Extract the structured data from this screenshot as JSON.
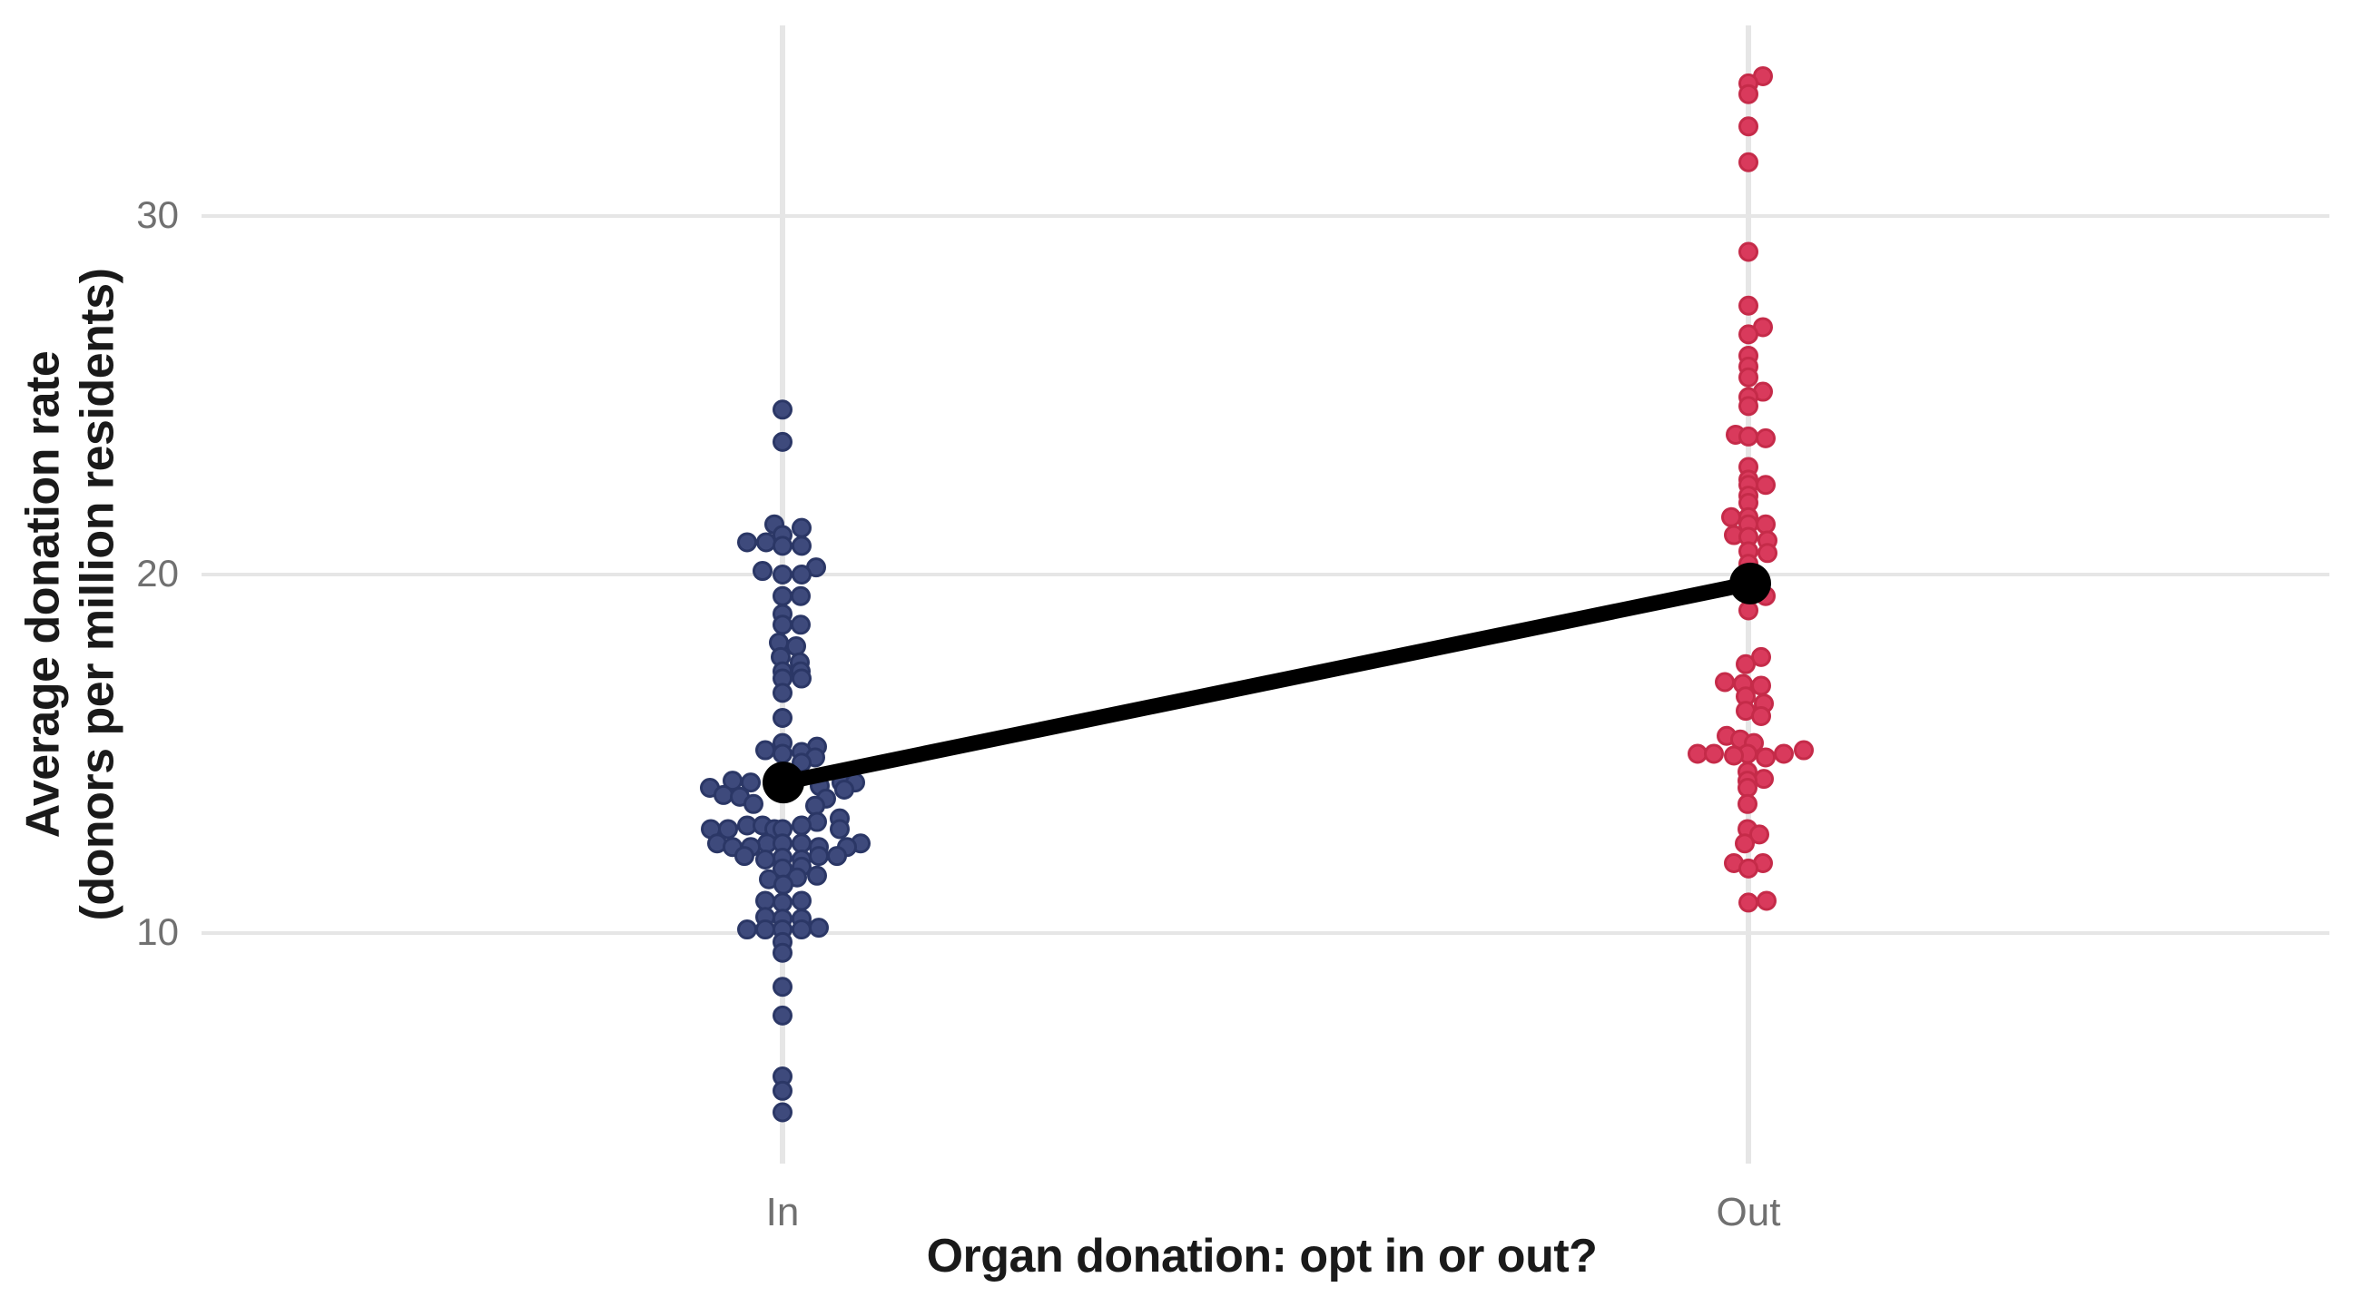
{
  "chart_data": {
    "type": "scatter",
    "subtype": "jittered strip plot with group means connected by a line",
    "title": "",
    "xlabel": "Organ donation: opt in or out?",
    "ylabel_lines": [
      "Average donation rate",
      "(donors per million residents)"
    ],
    "categories": [
      "In",
      "Out"
    ],
    "y_ticks": [
      10,
      20,
      30
    ],
    "y_range_approx": [
      3.6,
      35.3
    ],
    "grid": "major gridlines only, light gray on white",
    "legend": "none",
    "colors": {
      "opt_in_fill": "#3E4A7C",
      "opt_in_stroke": "#2B3766",
      "opt_out_fill": "#D93A5C",
      "opt_out_stroke": "#C52B49",
      "mean": "#000000",
      "gridline": "#E6E6E6",
      "tick_label": "#707070",
      "axis_title": "#1A1A1A",
      "background": "#FFFFFF"
    },
    "means": [
      {
        "category": "In",
        "value": 14.2
      },
      {
        "category": "Out",
        "value": 19.75
      }
    ],
    "series": [
      {
        "name": "Opt in",
        "category": "In",
        "points_format": "[donation_rate, x_jitter_px]",
        "points": [
          [
            24.6,
            0
          ],
          [
            23.7,
            0
          ],
          [
            21.4,
            -9
          ],
          [
            21.3,
            21
          ],
          [
            21.1,
            0
          ],
          [
            20.9,
            -39
          ],
          [
            20.9,
            -18
          ],
          [
            20.8,
            0
          ],
          [
            20.8,
            21
          ],
          [
            20.2,
            37
          ],
          [
            20.1,
            -22
          ],
          [
            20.0,
            0
          ],
          [
            20.0,
            21
          ],
          [
            19.4,
            0
          ],
          [
            19.4,
            20
          ],
          [
            18.9,
            0
          ],
          [
            18.6,
            0
          ],
          [
            18.6,
            20
          ],
          [
            18.1,
            -4
          ],
          [
            18.0,
            15
          ],
          [
            17.7,
            -2
          ],
          [
            17.55,
            19
          ],
          [
            17.3,
            0
          ],
          [
            17.3,
            20
          ],
          [
            17.1,
            0
          ],
          [
            17.1,
            21
          ],
          [
            16.7,
            0
          ],
          [
            16.0,
            0
          ],
          [
            15.3,
            0
          ],
          [
            15.2,
            38
          ],
          [
            15.1,
            -19
          ],
          [
            15.05,
            21
          ],
          [
            15.0,
            0
          ],
          [
            14.9,
            36
          ],
          [
            14.75,
            21
          ],
          [
            14.25,
            -55
          ],
          [
            14.2,
            -35
          ],
          [
            14.2,
            65
          ],
          [
            14.2,
            80
          ],
          [
            14.1,
            41
          ],
          [
            14.05,
            -80
          ],
          [
            14.0,
            68
          ],
          [
            13.85,
            -65
          ],
          [
            13.8,
            -47
          ],
          [
            13.75,
            48
          ],
          [
            13.6,
            -32
          ],
          [
            13.55,
            36
          ],
          [
            13.2,
            63
          ],
          [
            13.1,
            38
          ],
          [
            13.0,
            -39
          ],
          [
            13.0,
            -22
          ],
          [
            13.0,
            21
          ],
          [
            12.9,
            -79
          ],
          [
            12.9,
            -60
          ],
          [
            12.9,
            -9
          ],
          [
            12.9,
            0
          ],
          [
            12.9,
            63
          ],
          [
            12.5,
            -72
          ],
          [
            12.5,
            -17
          ],
          [
            12.5,
            0
          ],
          [
            12.5,
            21
          ],
          [
            12.5,
            86
          ],
          [
            12.4,
            -55
          ],
          [
            12.4,
            -35
          ],
          [
            12.4,
            40
          ],
          [
            12.4,
            71
          ],
          [
            12.15,
            -42
          ],
          [
            12.15,
            40
          ],
          [
            12.15,
            60
          ],
          [
            12.1,
            0
          ],
          [
            12.05,
            -19
          ],
          [
            12.05,
            21
          ],
          [
            11.85,
            21
          ],
          [
            11.8,
            0
          ],
          [
            11.6,
            38
          ],
          [
            11.55,
            16
          ],
          [
            11.5,
            -15
          ],
          [
            11.35,
            1
          ],
          [
            10.9,
            -19
          ],
          [
            10.9,
            21
          ],
          [
            10.85,
            0
          ],
          [
            10.45,
            -19
          ],
          [
            10.4,
            0
          ],
          [
            10.4,
            21
          ],
          [
            10.15,
            40
          ],
          [
            10.1,
            -39
          ],
          [
            10.1,
            -19
          ],
          [
            10.1,
            0
          ],
          [
            10.1,
            21
          ],
          [
            9.75,
            0
          ],
          [
            9.45,
            0
          ],
          [
            8.5,
            0
          ],
          [
            7.7,
            0
          ],
          [
            6.0,
            0
          ],
          [
            5.6,
            0
          ],
          [
            5.0,
            0
          ]
        ]
      },
      {
        "name": "Opt out",
        "category": "Out",
        "points_format": "[donation_rate, x_jitter_px]",
        "points": [
          [
            33.9,
            16
          ],
          [
            33.7,
            0
          ],
          [
            33.4,
            0
          ],
          [
            32.5,
            0
          ],
          [
            31.5,
            0
          ],
          [
            29.0,
            0
          ],
          [
            27.5,
            0
          ],
          [
            26.9,
            16
          ],
          [
            26.7,
            0
          ],
          [
            26.1,
            0
          ],
          [
            25.8,
            0
          ],
          [
            25.5,
            0
          ],
          [
            25.1,
            16
          ],
          [
            24.95,
            0
          ],
          [
            24.7,
            0
          ],
          [
            23.9,
            -14
          ],
          [
            23.85,
            0
          ],
          [
            23.8,
            19
          ],
          [
            23.0,
            0
          ],
          [
            22.65,
            0
          ],
          [
            22.5,
            0
          ],
          [
            22.5,
            19
          ],
          [
            22.2,
            0
          ],
          [
            22.0,
            0
          ],
          [
            21.6,
            -19
          ],
          [
            21.6,
            0
          ],
          [
            21.4,
            0
          ],
          [
            21.4,
            19
          ],
          [
            21.1,
            -16
          ],
          [
            21.05,
            0
          ],
          [
            20.95,
            21
          ],
          [
            20.65,
            0
          ],
          [
            20.6,
            21
          ],
          [
            20.3,
            0
          ],
          [
            19.4,
            19
          ],
          [
            19.0,
            0
          ],
          [
            17.7,
            14
          ],
          [
            17.5,
            -3
          ],
          [
            17.0,
            -26
          ],
          [
            16.95,
            -6
          ],
          [
            16.9,
            14
          ],
          [
            16.6,
            -3
          ],
          [
            16.4,
            17
          ],
          [
            16.2,
            -3
          ],
          [
            16.05,
            14
          ],
          [
            15.5,
            -24
          ],
          [
            15.4,
            -9
          ],
          [
            15.3,
            6
          ],
          [
            15.1,
            61
          ],
          [
            15.0,
            -56
          ],
          [
            15.0,
            -38
          ],
          [
            15.0,
            -1
          ],
          [
            15.0,
            39
          ],
          [
            14.95,
            -16
          ],
          [
            14.9,
            19
          ],
          [
            14.5,
            -1
          ],
          [
            14.3,
            17
          ],
          [
            14.25,
            -1
          ],
          [
            14.05,
            -1
          ],
          [
            13.6,
            -1
          ],
          [
            12.9,
            -1
          ],
          [
            12.75,
            12
          ],
          [
            12.5,
            -4
          ],
          [
            11.95,
            -16
          ],
          [
            11.95,
            16
          ],
          [
            11.8,
            0
          ],
          [
            10.9,
            20
          ],
          [
            10.85,
            0
          ]
        ]
      }
    ]
  }
}
